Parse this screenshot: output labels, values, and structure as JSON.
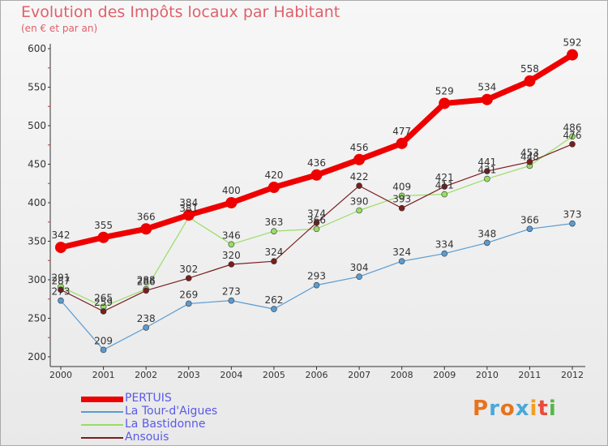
{
  "title": "Evolution des Impôts locaux par Habitant",
  "subtitle": "(en € et par an)",
  "logo": {
    "text": "Proxiti",
    "colors": [
      "#e8731e",
      "#4aa8d8",
      "#e8731e",
      "#4aa8d8",
      "#f0a020",
      "#e84c3c",
      "#55b848"
    ]
  },
  "chart_data": {
    "type": "line",
    "title": "Evolution des Impôts locaux par Habitant",
    "subtitle": "(en € et par an)",
    "xlabel": "",
    "ylabel": "",
    "ylim": [
      200,
      600
    ],
    "yticks": [
      200,
      250,
      300,
      350,
      400,
      450,
      500,
      550,
      600
    ],
    "x": [
      "2000",
      "2001",
      "2002",
      "2003",
      "2004",
      "2005",
      "2006",
      "2007",
      "2008",
      "2009",
      "2010",
      "2011",
      "2012"
    ],
    "grid": false,
    "legend_position": "bottom-left",
    "series": [
      {
        "name": "PERTUIS",
        "color": "#ee0000",
        "line_width": 7,
        "marker_radius": 7,
        "values": [
          342,
          355,
          366,
          384,
          400,
          420,
          436,
          456,
          477,
          529,
          534,
          558,
          592
        ]
      },
      {
        "name": "La Tour-d'Aigues",
        "color": "#5b9bd0",
        "line_width": 1.2,
        "marker_radius": 3.5,
        "values": [
          273,
          209,
          238,
          269,
          273,
          262,
          293,
          304,
          324,
          334,
          348,
          366,
          373
        ]
      },
      {
        "name": "La Bastidonne",
        "color": "#99dd66",
        "line_width": 1.2,
        "marker_radius": 3.5,
        "values": [
          291,
          265,
          288,
          381,
          346,
          363,
          366,
          390,
          409,
          411,
          431,
          448,
          486
        ]
      },
      {
        "name": "Ansouis",
        "color": "#7a1e1e",
        "line_width": 1.2,
        "marker_radius": 3.5,
        "values": [
          287,
          259,
          286,
          302,
          320,
          324,
          374,
          422,
          393,
          421,
          441,
          453,
          476
        ]
      }
    ]
  }
}
